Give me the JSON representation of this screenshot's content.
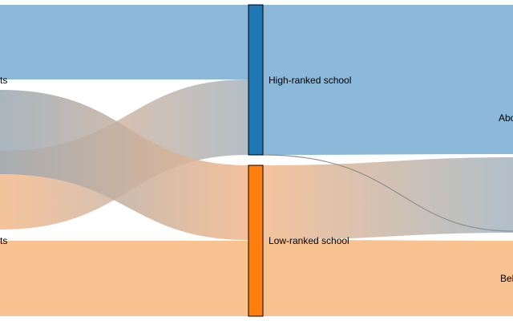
{
  "colors": {
    "high": "#1f77b4",
    "low": "#ff7f0e",
    "high_light": "#8cb8d9",
    "low_light": "#f8c391",
    "mix": "#a8a59a"
  },
  "nodes": {
    "left_top_label": "ts",
    "left_bottom_label": "ts",
    "mid_high_label": "High-ranked school",
    "mid_low_label": "Low-ranked school",
    "right_top_label": "Abo",
    "right_bottom_label": "Bel"
  },
  "flows": [
    {
      "from": "left_top",
      "to": "mid_high",
      "kind": "high"
    },
    {
      "from": "left_top",
      "to": "mid_low",
      "kind": "mix"
    },
    {
      "from": "left_bottom",
      "to": "mid_high",
      "kind": "mix"
    },
    {
      "from": "left_bottom",
      "to": "mid_low",
      "kind": "low"
    },
    {
      "from": "mid_high",
      "to": "right_top",
      "kind": "high"
    },
    {
      "from": "mid_high",
      "to": "right_bottom",
      "kind": "thin"
    },
    {
      "from": "mid_low",
      "to": "right_top",
      "kind": "mix"
    },
    {
      "from": "mid_low",
      "to": "right_bottom",
      "kind": "low"
    }
  ]
}
